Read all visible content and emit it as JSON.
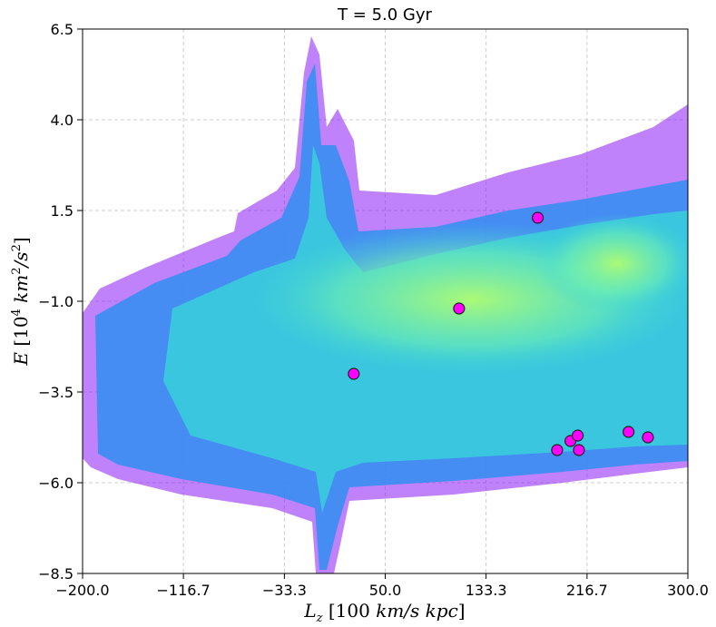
{
  "chart_data": {
    "type": "scatter",
    "title": "T = 5.0 Gyr",
    "xlabel": {
      "base": "L",
      "sub": "z",
      "units_open": " [100 ",
      "units_a": "km/s kpc",
      "units_close": "]"
    },
    "ylabel": {
      "base": "E",
      "units_open": " [10",
      "exp": "4",
      "units_a": " km",
      "units_exp": "2",
      "units_b": "/s",
      "units_exp2": "2",
      "units_close": "]"
    },
    "xlim": [
      -200.0,
      300.0
    ],
    "ylim": [
      -8.5,
      6.5
    ],
    "xticks": [
      -200.0,
      -116.7,
      -33.3,
      50.0,
      133.3,
      216.7,
      300.0
    ],
    "xtick_labels": [
      "−200.0",
      "−116.7",
      "−33.3",
      "50.0",
      "133.3",
      "216.7",
      "300.0"
    ],
    "yticks": [
      6.5,
      4.0,
      1.5,
      -1.0,
      -3.5,
      -6.0,
      -8.5
    ],
    "ytick_labels": [
      "6.5",
      "4.0",
      "1.5",
      "−1.0",
      "−3.5",
      "−6.0",
      "−8.5"
    ],
    "grid": true,
    "background": "2D density histogram of particles (purple to yellow-green)",
    "series": [
      {
        "marker_color": "#ff00ff",
        "points": [
          {
            "x": 24,
            "y": -3.0
          },
          {
            "x": 111,
            "y": -1.2
          },
          {
            "x": 176,
            "y": 1.3
          },
          {
            "x": 192,
            "y": -5.1
          },
          {
            "x": 203,
            "y": -4.85
          },
          {
            "x": 209,
            "y": -4.7
          },
          {
            "x": 210,
            "y": -5.1
          },
          {
            "x": 251,
            "y": -4.6
          },
          {
            "x": 267,
            "y": -4.75
          }
        ]
      }
    ],
    "colors": {
      "density_low": "#7a00ff",
      "density_mid": "#2fa6ff",
      "density_high": "#a8ff7a"
    }
  }
}
